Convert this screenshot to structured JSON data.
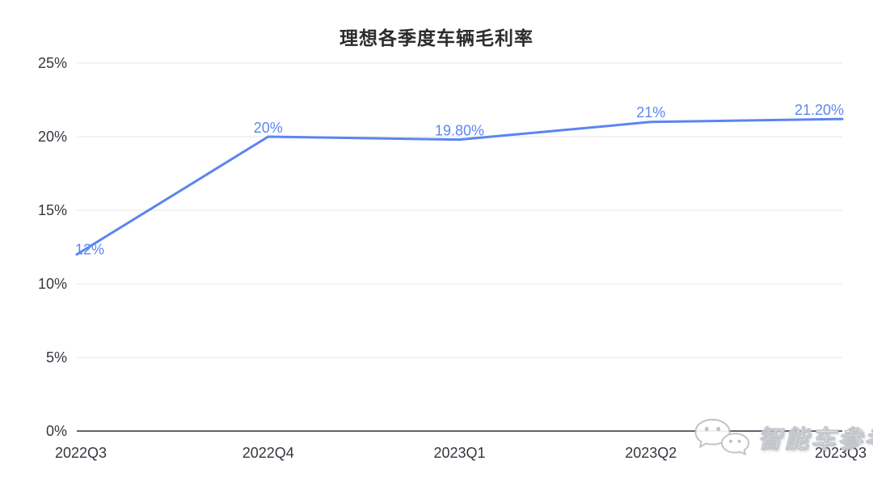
{
  "chart_data": {
    "type": "line",
    "title": "理想各季度车辆毛利率",
    "categories": [
      "2022Q3",
      "2022Q4",
      "2023Q1",
      "2023Q2",
      "2023Q3"
    ],
    "values": [
      12,
      20,
      19.8,
      21,
      21.2
    ],
    "point_labels": [
      "12%",
      "20%",
      "19.80%",
      "21%",
      "21.20%"
    ],
    "xlabel": "",
    "ylabel": "",
    "ylim": [
      0,
      25
    ],
    "yticks": [
      0,
      5,
      10,
      15,
      20,
      25
    ],
    "ytick_labels": [
      "0%",
      "5%",
      "10%",
      "15%",
      "20%",
      "25%"
    ],
    "grid": true,
    "legend": false,
    "line_color": "#5b85f0",
    "label_color": "#5c87f2",
    "grid_color": "#e7e7e9",
    "axis_color": "#606570",
    "tick_color": "#33373d"
  },
  "watermark": {
    "text": "智能车参考",
    "icon": "chat-bubbles-icon"
  }
}
